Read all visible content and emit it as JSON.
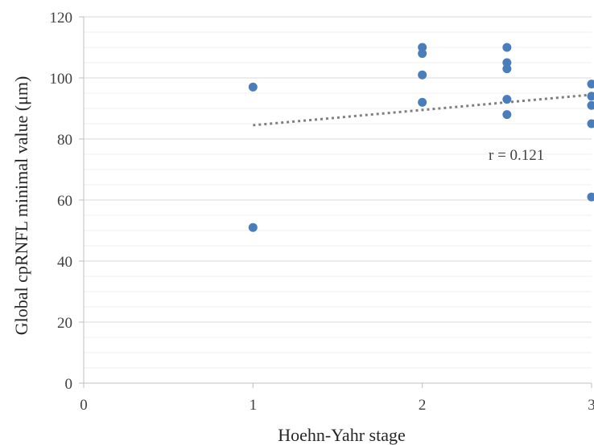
{
  "chart_data": {
    "type": "scatter",
    "title": "",
    "xlabel": "Hoehn-Yahr stage",
    "ylabel": "Global cpRNFL minimal value (μm)",
    "xlim": [
      0,
      3
    ],
    "ylim": [
      0,
      120
    ],
    "x_ticks": [
      "0",
      "1",
      "2",
      "3"
    ],
    "y_ticks": [
      "0",
      "20",
      "40",
      "60",
      "80",
      "100",
      "120"
    ],
    "grid": true,
    "minor_grid": true,
    "legend": "none",
    "point_color": "#4a7ebb",
    "trendline_color": "#7f7f7f",
    "points": [
      {
        "x": 1,
        "y": 97
      },
      {
        "x": 1,
        "y": 51
      },
      {
        "x": 2,
        "y": 110
      },
      {
        "x": 2,
        "y": 108
      },
      {
        "x": 2,
        "y": 101
      },
      {
        "x": 2,
        "y": 92
      },
      {
        "x": 2.5,
        "y": 110
      },
      {
        "x": 2.5,
        "y": 105
      },
      {
        "x": 2.5,
        "y": 103
      },
      {
        "x": 2.5,
        "y": 93
      },
      {
        "x": 2.5,
        "y": 88
      },
      {
        "x": 3,
        "y": 98
      },
      {
        "x": 3,
        "y": 94
      },
      {
        "x": 3,
        "y": 91
      },
      {
        "x": 3,
        "y": 85
      },
      {
        "x": 3,
        "y": 61
      }
    ],
    "trendline": {
      "type": "linear",
      "x": [
        1,
        3
      ],
      "y": [
        84.5,
        94.5
      ]
    },
    "annotation": "r = 0.121"
  }
}
